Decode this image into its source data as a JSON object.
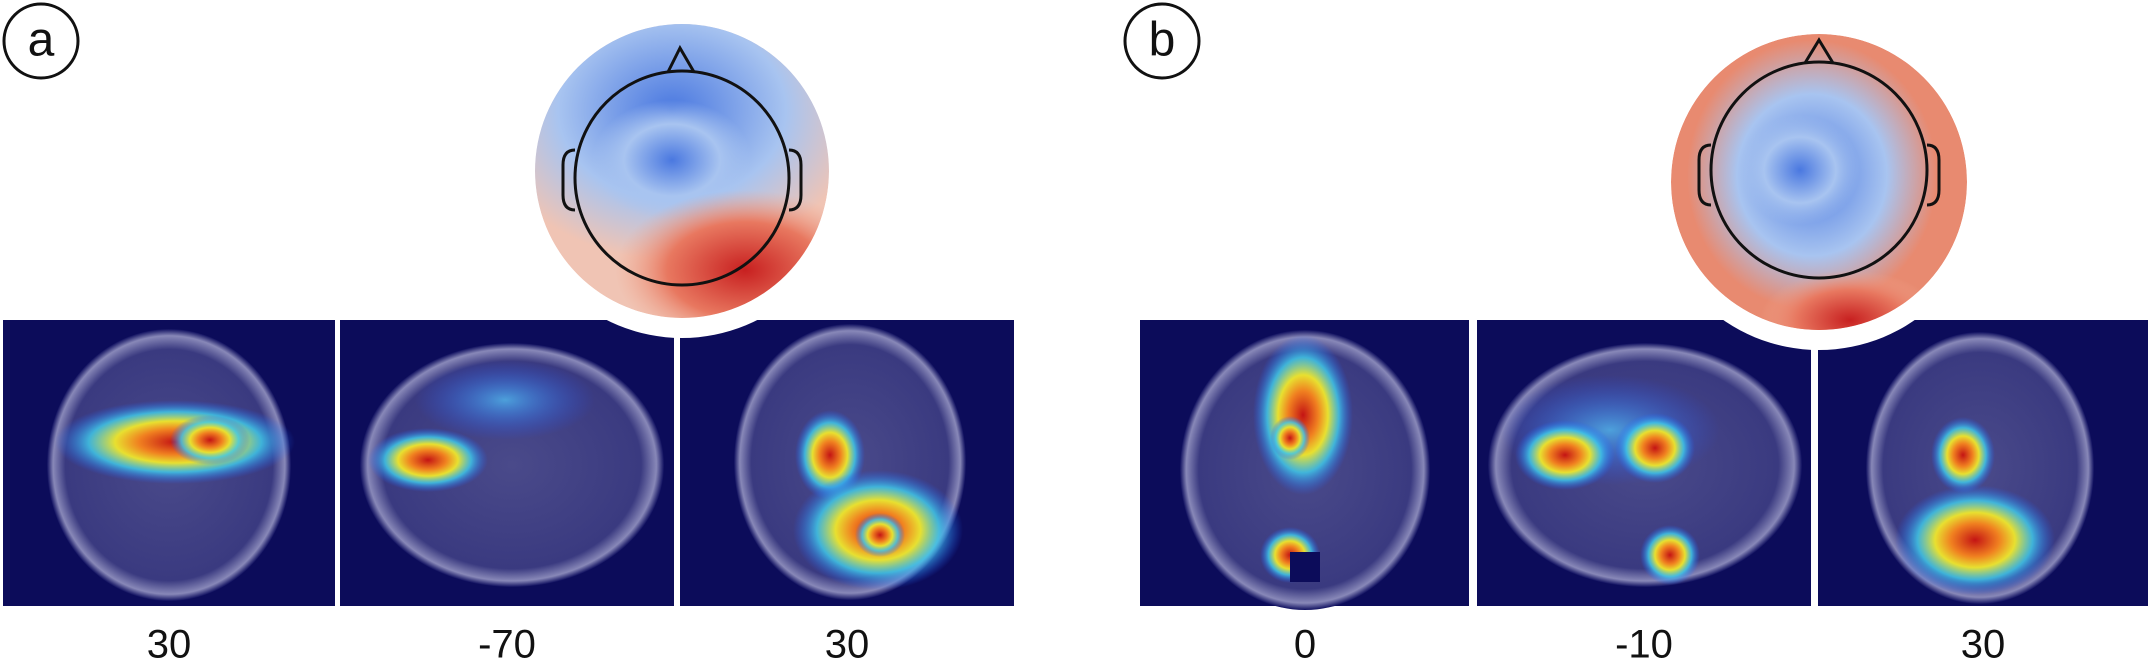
{
  "panels": [
    {
      "label": "a",
      "slices": [
        "30",
        "-70",
        "30"
      ]
    },
    {
      "label": "b",
      "slices": [
        "0",
        "-10",
        "30"
      ]
    }
  ]
}
